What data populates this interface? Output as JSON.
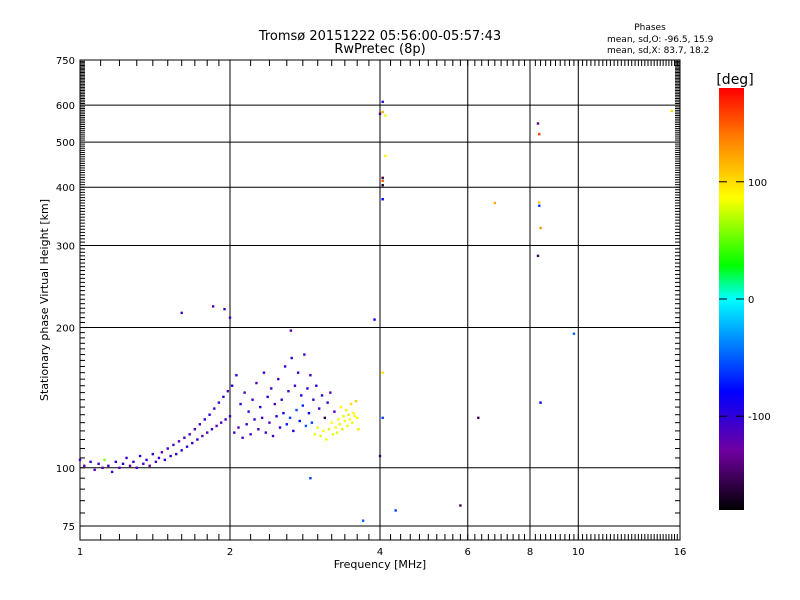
{
  "chart_data": {
    "type": "scatter",
    "title": "Tromsø 20151222 05:56:00-05:57:43",
    "subtitle": "RwPretec (8p)",
    "xlabel": "Frequency [MHz]",
    "ylabel": "Stationary phase Virtual Height [km]",
    "x_scale": "log",
    "y_scale": "log",
    "xlim": [
      1,
      16
    ],
    "ylim": [
      70,
      750
    ],
    "x_ticks": [
      1,
      2,
      4,
      6,
      8,
      10,
      16
    ],
    "x_tick_labels": [
      "1",
      "2",
      "4",
      "6",
      "8",
      "10",
      "16"
    ],
    "y_ticks": [
      75,
      100,
      200,
      300,
      400,
      500,
      600,
      750
    ],
    "y_tick_labels": [
      "75",
      "100",
      "200",
      "300",
      "400",
      "500",
      "600",
      "750"
    ],
    "grid": true,
    "stats": {
      "heading": "Phases",
      "line_o": "mean, sd,O: -96.5, 15.9",
      "line_x": "mean, sd,X: 83.7, 18.2"
    },
    "colorbar": {
      "label": "[deg]",
      "range": [
        -180,
        180
      ],
      "ticks": [
        100,
        0,
        -100
      ],
      "tick_labels": [
        "100",
        "0",
        "-100"
      ]
    },
    "series": [
      {
        "name": "echoes",
        "points": [
          [
            1.0,
            104,
            -105
          ],
          [
            1.02,
            101,
            -110
          ],
          [
            1.05,
            103,
            -100
          ],
          [
            1.07,
            99,
            -115
          ],
          [
            1.09,
            102,
            -108
          ],
          [
            1.11,
            100,
            -120
          ],
          [
            1.12,
            104,
            60
          ],
          [
            1.14,
            101,
            -105
          ],
          [
            1.16,
            98,
            -112
          ],
          [
            1.18,
            103,
            -100
          ],
          [
            1.2,
            100,
            -118
          ],
          [
            1.22,
            102,
            -96
          ],
          [
            1.24,
            105,
            -108
          ],
          [
            1.26,
            101,
            -125
          ],
          [
            1.28,
            103,
            -103
          ],
          [
            1.3,
            100,
            -110
          ],
          [
            1.32,
            106,
            -98
          ],
          [
            1.34,
            102,
            -115
          ],
          [
            1.36,
            104,
            -104
          ],
          [
            1.38,
            101,
            -122
          ],
          [
            1.4,
            107,
            -100
          ],
          [
            1.42,
            103,
            -112
          ],
          [
            1.44,
            105,
            -106
          ],
          [
            1.46,
            108,
            -118
          ],
          [
            1.48,
            104,
            -101
          ],
          [
            1.5,
            110,
            -109
          ],
          [
            1.52,
            106,
            -96
          ],
          [
            1.54,
            112,
            -114
          ],
          [
            1.56,
            107,
            -105
          ],
          [
            1.58,
            114,
            -120
          ],
          [
            1.6,
            109,
            -100
          ],
          [
            1.62,
            116,
            -108
          ],
          [
            1.64,
            111,
            -98
          ],
          [
            1.66,
            118,
            -116
          ],
          [
            1.68,
            113,
            -104
          ],
          [
            1.7,
            121,
            -111
          ],
          [
            1.72,
            115,
            -99
          ],
          [
            1.74,
            124,
            -107
          ],
          [
            1.76,
            117,
            -121
          ],
          [
            1.78,
            127,
            -103
          ],
          [
            1.8,
            119,
            -113
          ],
          [
            1.82,
            130,
            -97
          ],
          [
            1.84,
            121,
            -110
          ],
          [
            1.86,
            134,
            -106
          ],
          [
            1.88,
            123,
            -118
          ],
          [
            1.9,
            138,
            -102
          ],
          [
            1.92,
            125,
            -112
          ],
          [
            1.94,
            142,
            -100
          ],
          [
            1.96,
            127,
            -108
          ],
          [
            1.98,
            146,
            -119
          ],
          [
            2.0,
            129,
            -105
          ],
          [
            2.02,
            150,
            -97
          ],
          [
            2.04,
            119,
            -111
          ],
          [
            2.06,
            158,
            -103
          ],
          [
            2.08,
            122,
            -115
          ],
          [
            2.1,
            137,
            -100
          ],
          [
            2.12,
            116,
            -109
          ],
          [
            2.14,
            145,
            -121
          ],
          [
            2.16,
            124,
            -104
          ],
          [
            2.18,
            132,
            -98
          ],
          [
            2.2,
            118,
            -113
          ],
          [
            2.22,
            140,
            -106
          ],
          [
            2.24,
            127,
            -101
          ],
          [
            2.26,
            152,
            -117
          ],
          [
            2.28,
            121,
            -108
          ],
          [
            2.3,
            135,
            -99
          ],
          [
            2.32,
            128,
            -112
          ],
          [
            2.34,
            160,
            -104
          ],
          [
            2.36,
            119,
            -110
          ],
          [
            2.38,
            142,
            -96
          ],
          [
            2.4,
            125,
            -115
          ],
          [
            2.42,
            148,
            -102
          ],
          [
            2.44,
            117,
            -107
          ],
          [
            2.46,
            137,
            -119
          ],
          [
            2.48,
            129,
            -100
          ],
          [
            2.5,
            155,
            -111
          ],
          [
            2.52,
            122,
            -98
          ],
          [
            2.54,
            140,
            -105
          ],
          [
            2.56,
            131,
            -80
          ],
          [
            2.58,
            165,
            -103
          ],
          [
            2.6,
            124,
            -70
          ],
          [
            2.62,
            146,
            -109
          ],
          [
            2.64,
            128,
            -60
          ],
          [
            2.66,
            172,
            -100
          ],
          [
            2.68,
            120,
            -85
          ],
          [
            2.7,
            150,
            -112
          ],
          [
            2.72,
            133,
            -55
          ],
          [
            2.74,
            160,
            -104
          ],
          [
            2.76,
            126,
            -75
          ],
          [
            2.78,
            143,
            -96
          ],
          [
            2.8,
            136,
            -65
          ],
          [
            2.82,
            175,
            -108
          ],
          [
            2.84,
            123,
            -50
          ],
          [
            2.86,
            148,
            -101
          ],
          [
            2.88,
            131,
            -80
          ],
          [
            2.9,
            158,
            -110
          ],
          [
            2.92,
            125,
            -62
          ],
          [
            2.94,
            140,
            -103
          ],
          [
            2.96,
            118,
            80
          ],
          [
            2.98,
            150,
            -99
          ],
          [
            3.0,
            122,
            82
          ],
          [
            3.02,
            134,
            -107
          ],
          [
            3.04,
            117,
            78
          ],
          [
            3.06,
            143,
            -100
          ],
          [
            3.08,
            120,
            85
          ],
          [
            3.1,
            128,
            -160
          ],
          [
            3.12,
            115,
            84
          ],
          [
            3.14,
            138,
            -105
          ],
          [
            3.16,
            121,
            79
          ],
          [
            3.18,
            145,
            -120
          ],
          [
            3.2,
            125,
            88
          ],
          [
            3.22,
            118,
            83
          ],
          [
            3.24,
            132,
            -110
          ],
          [
            3.26,
            122,
            86
          ],
          [
            3.28,
            119,
            80
          ],
          [
            3.3,
            127,
            90
          ],
          [
            3.32,
            124,
            82
          ],
          [
            3.34,
            135,
            85
          ],
          [
            3.36,
            121,
            95
          ],
          [
            3.38,
            129,
            80
          ],
          [
            3.4,
            126,
            88
          ],
          [
            3.42,
            133,
            92
          ],
          [
            3.44,
            123,
            84
          ],
          [
            3.46,
            130,
            96
          ],
          [
            3.48,
            127,
            86
          ],
          [
            3.5,
            137,
            100
          ],
          [
            3.52,
            125,
            82
          ],
          [
            3.54,
            131,
            90
          ],
          [
            3.56,
            129,
            87
          ],
          [
            3.58,
            139,
            105
          ],
          [
            3.6,
            128,
            83
          ],
          [
            3.62,
            121,
            95
          ],
          [
            1.6,
            215,
            -110
          ],
          [
            1.85,
            222,
            -120
          ],
          [
            1.95,
            219,
            -105
          ],
          [
            2.0,
            210,
            -110
          ],
          [
            2.65,
            197,
            -120
          ],
          [
            4.05,
            610,
            -100
          ],
          [
            4.0,
            575,
            -150
          ],
          [
            4.05,
            580,
            120
          ],
          [
            4.1,
            570,
            80
          ],
          [
            4.05,
            413,
            150
          ],
          [
            4.05,
            419,
            -160
          ],
          [
            4.1,
            467,
            90
          ],
          [
            4.05,
            404,
            -170
          ],
          [
            4.05,
            377,
            -80
          ],
          [
            3.9,
            208,
            -80
          ],
          [
            4.05,
            160,
            100
          ],
          [
            4.05,
            128,
            -60
          ],
          [
            4.0,
            106,
            -150
          ],
          [
            4.3,
            81,
            -60
          ],
          [
            5.8,
            83,
            -150
          ],
          [
            6.3,
            128,
            -150
          ],
          [
            6.8,
            370,
            120
          ],
          [
            8.3,
            548,
            -140
          ],
          [
            8.35,
            520,
            160
          ],
          [
            8.35,
            371,
            110
          ],
          [
            8.35,
            365,
            -60
          ],
          [
            8.4,
            327,
            130
          ],
          [
            8.3,
            285,
            -150
          ],
          [
            8.4,
            138,
            -80
          ],
          [
            9.8,
            194,
            -50
          ],
          [
            15.4,
            583,
            100
          ],
          [
            2.9,
            95,
            -60
          ],
          [
            3.7,
            77,
            -50
          ]
        ]
      }
    ]
  }
}
